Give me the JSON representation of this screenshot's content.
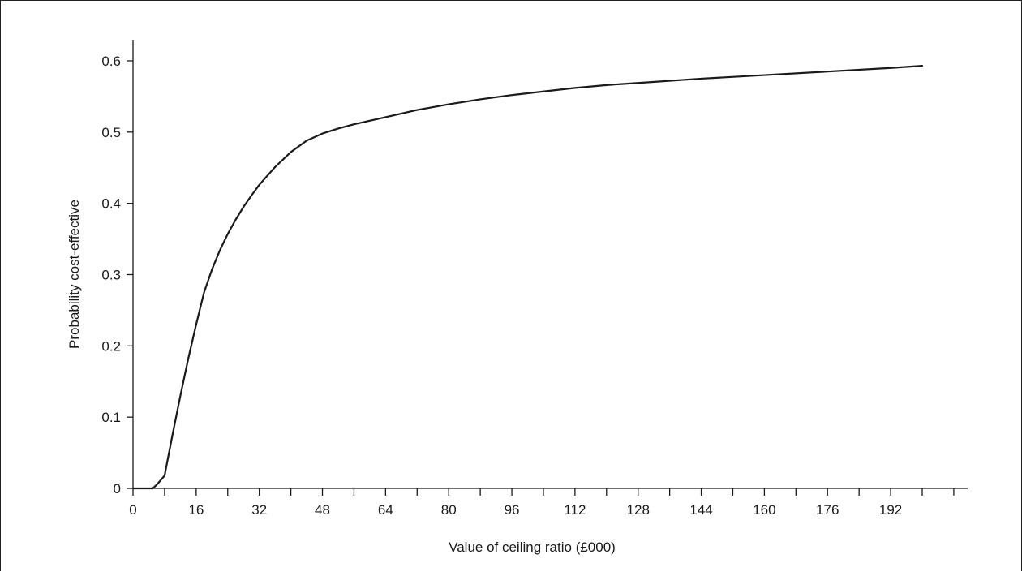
{
  "chart_data": {
    "type": "line",
    "title": "",
    "xlabel": "Value of ceiling ratio (£000)",
    "ylabel": "Probability cost-effective",
    "xlim": [
      0,
      200
    ],
    "ylim": [
      0,
      0.63
    ],
    "xticks": [
      0,
      16,
      32,
      48,
      64,
      80,
      96,
      112,
      128,
      144,
      160,
      176,
      192
    ],
    "xtick_labels": [
      "0",
      "16",
      "32",
      "48",
      "64",
      "80",
      "96",
      "112",
      "128",
      "144",
      "160",
      "176",
      "192"
    ],
    "yticks": [
      0,
      0.1,
      0.2,
      0.3,
      0.4,
      0.5,
      0.6
    ],
    "ytick_labels": [
      "0",
      "0.1",
      "0.2",
      "0.3",
      "0.4",
      "0.5",
      "0.6"
    ],
    "grid": false,
    "legend": "none",
    "line_color": "#1a1a1a",
    "series": [
      {
        "x": [
          0,
          5,
          6,
          8,
          10,
          12,
          14,
          16,
          18,
          20,
          22,
          24,
          26,
          28,
          30,
          32,
          36,
          40,
          44,
          48,
          52,
          56,
          60,
          64,
          72,
          80,
          88,
          96,
          104,
          112,
          120,
          128,
          144,
          160,
          176,
          192,
          200
        ],
        "y": [
          0,
          0,
          0.005,
          0.018,
          0.075,
          0.13,
          0.182,
          0.23,
          0.275,
          0.307,
          0.334,
          0.357,
          0.377,
          0.395,
          0.411,
          0.426,
          0.451,
          0.472,
          0.488,
          0.498,
          0.505,
          0.511,
          0.516,
          0.521,
          0.531,
          0.539,
          0.546,
          0.552,
          0.557,
          0.562,
          0.566,
          0.569,
          0.575,
          0.58,
          0.585,
          0.59,
          0.593
        ]
      }
    ]
  }
}
